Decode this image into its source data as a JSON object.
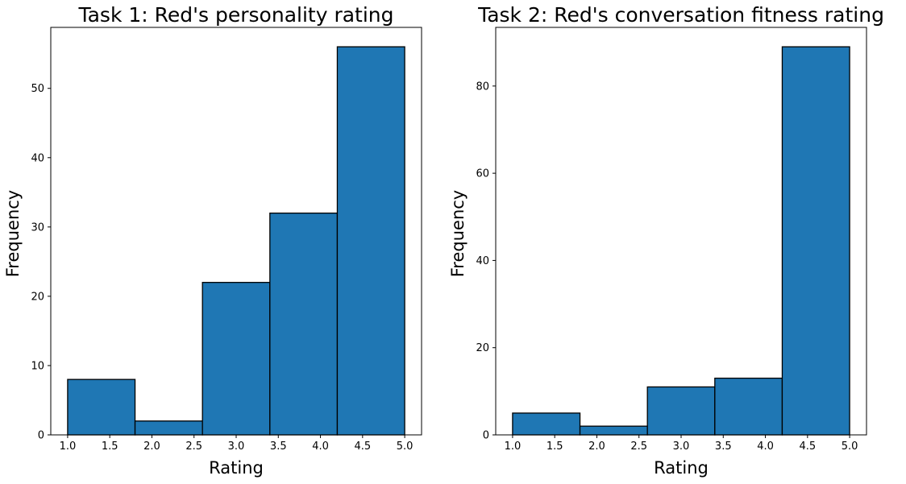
{
  "chart_data": [
    {
      "type": "bar",
      "title": "Task 1: Red's personality rating",
      "xlabel": "Rating",
      "ylabel": "Frequency",
      "bin_edges": [
        1.0,
        1.8,
        2.6,
        3.4,
        4.2,
        5.0
      ],
      "values": [
        8,
        2,
        22,
        32,
        56
      ],
      "xlim": [
        0.8,
        5.2
      ],
      "ylim": [
        0,
        58.8
      ],
      "xticks": [
        "1.0",
        "1.5",
        "2.0",
        "2.5",
        "3.0",
        "3.5",
        "4.0",
        "4.5",
        "5.0"
      ],
      "yticks": [
        "0",
        "10",
        "20",
        "30",
        "40",
        "50"
      ],
      "xtick_values": [
        1.0,
        1.5,
        2.0,
        2.5,
        3.0,
        3.5,
        4.0,
        4.5,
        5.0
      ],
      "ytick_values": [
        0,
        10,
        20,
        30,
        40,
        50
      ],
      "bar_color": "#1f77b4",
      "edge_color": "#000000",
      "grid": false,
      "legend": "none"
    },
    {
      "type": "bar",
      "title": "Task 2: Red's conversation fitness rating",
      "xlabel": "Rating",
      "ylabel": "Frequency",
      "bin_edges": [
        1.0,
        1.8,
        2.6,
        3.4,
        4.2,
        5.0
      ],
      "values": [
        5,
        2,
        11,
        13,
        89
      ],
      "xlim": [
        0.8,
        5.2
      ],
      "ylim": [
        0,
        93.45
      ],
      "xticks": [
        "1.0",
        "1.5",
        "2.0",
        "2.5",
        "3.0",
        "3.5",
        "4.0",
        "4.5",
        "5.0"
      ],
      "yticks": [
        "0",
        "20",
        "40",
        "60",
        "80"
      ],
      "xtick_values": [
        1.0,
        1.5,
        2.0,
        2.5,
        3.0,
        3.5,
        4.0,
        4.5,
        5.0
      ],
      "ytick_values": [
        0,
        20,
        40,
        60,
        80
      ],
      "bar_color": "#1f77b4",
      "edge_color": "#000000",
      "grid": false,
      "legend": "none"
    }
  ]
}
